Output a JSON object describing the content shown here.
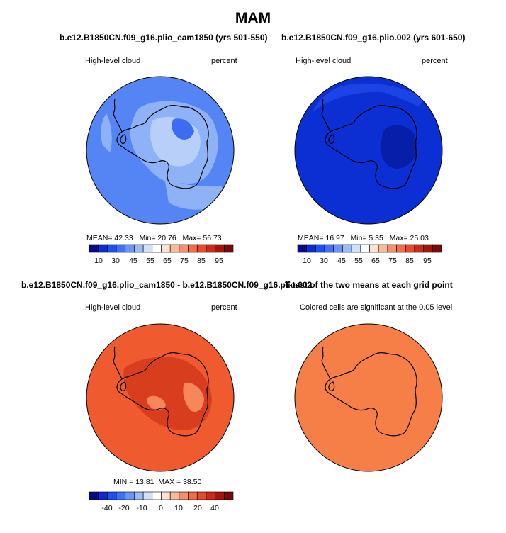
{
  "header": {
    "title": "MAM"
  },
  "panels": {
    "p1": {
      "title": "b.e12.B1850CN.f09_g16.plio_cam1850 (yrs 501-550)",
      "variable": "High-level cloud",
      "units": "percent",
      "stats": {
        "mean_label": "MEAN=",
        "mean": "42.33",
        "min_label": "Min=",
        "min": "20.76",
        "max_label": "Max=",
        "max": "56.73"
      }
    },
    "p2": {
      "title": "b.e12.B1850CN.f09_g16.plio.002 (yrs 601-650)",
      "variable": "High-level cloud",
      "units": "percent",
      "stats": {
        "mean_label": "MEAN=",
        "mean": "16.97",
        "min_label": "Min=",
        "min": "5.35",
        "max_label": "Max=",
        "max": "25.03"
      }
    },
    "p3": {
      "title": "b.e12.B1850CN.f09_g16.plio_cam1850 - b.e12.B1850CN.f09_g16.plio.002",
      "variable": "High-level cloud",
      "units": "percent",
      "stats": {
        "min_label": "MIN =",
        "min": "13.81",
        "max_label": "MAX =",
        "max": "38.50"
      }
    },
    "p4": {
      "title": "T-test of the two means at each grid point",
      "note": "Colored cells are significant at the 0.05 level"
    }
  },
  "colorbars": {
    "absolute": {
      "labels": [
        "10",
        "30",
        "45",
        "55",
        "65",
        "75",
        "85",
        "95"
      ]
    },
    "difference": {
      "labels": [
        "-40",
        "-20",
        "-10",
        "0",
        "10",
        "20",
        "40"
      ]
    }
  },
  "palette": [
    "#08088a",
    "#0a2bd6",
    "#1f4ff0",
    "#3f70f5",
    "#6a95f7",
    "#9bbcf8",
    "#cfe0fb",
    "#ffffff",
    "#fde2d4",
    "#f9b99b",
    "#f68f6c",
    "#f26d47",
    "#e84a2c",
    "#cc2918",
    "#a5140a",
    "#7a0a0a"
  ],
  "map_colors": {
    "p1_base": "#5585f4",
    "p1_light": "#8fb2f7",
    "p1_lighter": "#b8cffa",
    "p1_dark": "#3d6cf2",
    "p2_base": "#0b2fd2",
    "p2_dark": "#061ea8",
    "p2_light": "#1c44e4",
    "p3_base": "#ef5a2e",
    "p3_dark": "#d83d1d",
    "p3_light": "#f7865a",
    "p4_base": "#f57f46"
  }
}
